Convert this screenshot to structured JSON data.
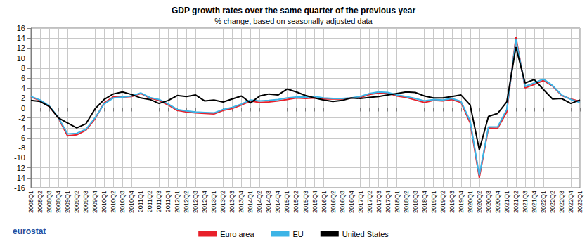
{
  "chart_data": {
    "type": "line",
    "title": "GDP growth rates over the same quarter of the previous year",
    "subtitle": "% change, based on seasonally adjusted data",
    "annotations": [
      "eurostat"
    ],
    "categories": [
      "2008Q1",
      "2008Q2",
      "2008Q3",
      "2008Q4",
      "2009Q1",
      "2009Q2",
      "2009Q3",
      "2009Q4",
      "2010Q1",
      "2010Q2",
      "2010Q3",
      "2010Q4",
      "2011Q1",
      "2011Q2",
      "2011Q3",
      "2011Q4",
      "2012Q1",
      "2012Q2",
      "2012Q3",
      "2012Q4",
      "2013Q1",
      "2013Q2",
      "2013Q3",
      "2013Q4",
      "2014Q1",
      "2014Q2",
      "2014Q3",
      "2014Q4",
      "2015Q1",
      "2015Q2",
      "2015Q3",
      "2015Q4",
      "2016Q1",
      "2016Q2",
      "2016Q3",
      "2016Q4",
      "2017Q1",
      "2017Q2",
      "2017Q3",
      "2017Q4",
      "2018Q1",
      "2018Q2",
      "2018Q3",
      "2018Q4",
      "2019Q1",
      "2019Q2",
      "2019Q3",
      "2019Q4",
      "2020Q1",
      "2020Q2",
      "2020Q3",
      "2020Q4",
      "2021Q1",
      "2021Q2",
      "2021Q3",
      "2021Q4",
      "2022Q1",
      "2022Q2",
      "2022Q3",
      "2022Q4",
      "2023Q1"
    ],
    "series": [
      {
        "name": "Euro area",
        "color": "#e8202a",
        "values": [
          2.2,
          1.5,
          0.3,
          -2.0,
          -5.6,
          -5.4,
          -4.5,
          -2.2,
          1.0,
          2.2,
          2.2,
          2.3,
          2.9,
          2.0,
          1.5,
          0.6,
          -0.5,
          -0.8,
          -1.0,
          -1.1,
          -1.2,
          -0.5,
          -0.1,
          0.6,
          1.4,
          1.1,
          1.2,
          1.4,
          1.7,
          2.0,
          1.9,
          2.0,
          1.8,
          1.8,
          1.8,
          2.0,
          2.1,
          2.7,
          3.0,
          3.0,
          2.4,
          2.1,
          1.6,
          1.1,
          1.5,
          1.4,
          1.7,
          1.1,
          -3.0,
          -14.0,
          -4.0,
          -4.1,
          -0.8,
          14.2,
          4.0,
          4.7,
          5.5,
          4.4,
          2.5,
          1.8,
          1.3
        ]
      },
      {
        "name": "EU",
        "color": "#3cb4e6",
        "values": [
          2.3,
          1.6,
          0.4,
          -1.9,
          -5.2,
          -5.1,
          -4.3,
          -2.0,
          0.8,
          2.0,
          2.2,
          2.4,
          3.0,
          2.1,
          1.7,
          0.8,
          -0.3,
          -0.6,
          -0.8,
          -0.9,
          -1.0,
          -0.3,
          0.1,
          0.8,
          1.6,
          1.4,
          1.5,
          1.7,
          2.0,
          2.2,
          2.2,
          2.3,
          2.0,
          1.9,
          1.9,
          2.0,
          2.3,
          2.9,
          3.2,
          3.1,
          2.6,
          2.3,
          1.9,
          1.4,
          1.7,
          1.6,
          1.9,
          1.3,
          -2.6,
          -13.5,
          -3.8,
          -3.8,
          -0.3,
          13.7,
          4.3,
          5.0,
          5.8,
          4.5,
          2.6,
          1.7,
          1.1
        ]
      },
      {
        "name": "United States",
        "color": "#000000",
        "values": [
          1.5,
          1.3,
          0.3,
          -2.0,
          -3.0,
          -4.0,
          -3.2,
          -0.2,
          1.7,
          2.8,
          3.2,
          2.7,
          2.0,
          1.7,
          0.9,
          1.5,
          2.5,
          2.3,
          2.6,
          1.4,
          1.6,
          1.2,
          1.8,
          2.4,
          1.0,
          2.4,
          2.8,
          2.6,
          3.8,
          3.2,
          2.5,
          2.0,
          1.6,
          1.3,
          1.5,
          2.0,
          1.9,
          2.1,
          2.3,
          2.6,
          2.9,
          3.2,
          3.1,
          2.4,
          2.0,
          2.0,
          2.3,
          2.6,
          0.6,
          -8.4,
          -1.7,
          -1.1,
          1.2,
          12.2,
          5.0,
          5.7,
          3.7,
          1.8,
          1.9,
          0.9,
          1.6
        ]
      }
    ],
    "ylim": [
      -16,
      16
    ],
    "yticks": [
      -16,
      -14,
      -12,
      -10,
      -8,
      -6,
      -4,
      -2,
      0,
      2,
      4,
      6,
      8,
      10,
      12,
      14,
      16
    ],
    "grid": true,
    "legend": "bottom"
  }
}
